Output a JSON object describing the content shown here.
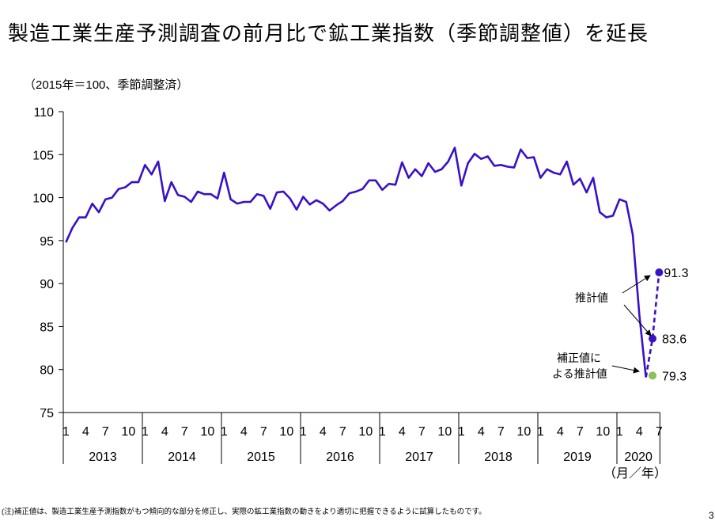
{
  "title": "製造工業生産予測調査の前月比で鉱工業指数（季節調整値）を延長",
  "note": "(注)補正値は、製造工業生産予測指数がもつ傾向的な部分を修正し、実際の鉱工業指数の動きをより適切に把握できるように試算したものです。",
  "page_number": "3",
  "chart_data": {
    "type": "line",
    "unit_label": "（2015年＝100、季節調整済）",
    "xlabel": "（月／年）",
    "ylim": [
      75,
      110
    ],
    "yticks": [
      75,
      80,
      85,
      90,
      95,
      100,
      105,
      110
    ],
    "month_tick_labels": [
      "1",
      "4",
      "7",
      "10"
    ],
    "years": [
      "2013",
      "2014",
      "2015",
      "2016",
      "2017",
      "2018",
      "2019",
      "2020"
    ],
    "x_start": "2013-01",
    "x_end": "2020-07",
    "grid": false,
    "colors": {
      "actual": "#3a10c8",
      "estimate": "#3a10c8",
      "corrected": "#8dbf5a"
    },
    "series": [
      {
        "values": [
          94.8,
          96.5,
          97.7,
          97.7,
          99.3,
          98.3,
          99.8,
          100.0,
          101.0,
          101.2,
          101.8,
          101.8,
          103.8,
          102.7,
          104.2,
          99.6,
          101.8,
          100.3,
          100.1,
          99.5,
          100.7,
          100.4,
          100.4,
          99.9,
          102.9,
          99.8,
          99.3,
          99.5,
          99.5,
          100.4,
          100.2,
          98.7,
          100.6,
          100.7,
          99.9,
          98.6,
          100.1,
          99.2,
          99.7,
          99.3,
          98.5,
          99.1,
          99.6,
          100.5,
          100.7,
          101.0,
          102.0,
          102.0,
          100.9,
          101.6,
          101.5,
          104.1,
          102.3,
          103.3,
          102.5,
          104.0,
          103.0,
          103.3,
          104.2,
          105.8,
          101.4,
          104.0,
          105.1,
          104.5,
          104.8,
          103.7,
          103.8,
          103.6,
          103.5,
          105.6,
          104.6,
          104.7,
          102.3,
          103.3,
          102.9,
          102.7,
          104.2,
          101.5,
          102.2,
          100.6,
          102.3,
          98.3,
          97.7,
          97.9,
          99.8,
          99.5,
          95.7,
          86.4,
          79.1
        ]
      }
    ],
    "estimates": {
      "label": "推計値",
      "points": [
        {
          "month": "2020-06",
          "value": 83.6,
          "label": "83.6"
        },
        {
          "month": "2020-07",
          "value": 91.3,
          "label": "91.3"
        }
      ]
    },
    "corrected_estimate": {
      "label_line1": "補正値に",
      "label_line2": "よる推計値",
      "points": [
        {
          "month": "2020-06",
          "value": 79.3,
          "label": "79.3"
        }
      ]
    }
  }
}
